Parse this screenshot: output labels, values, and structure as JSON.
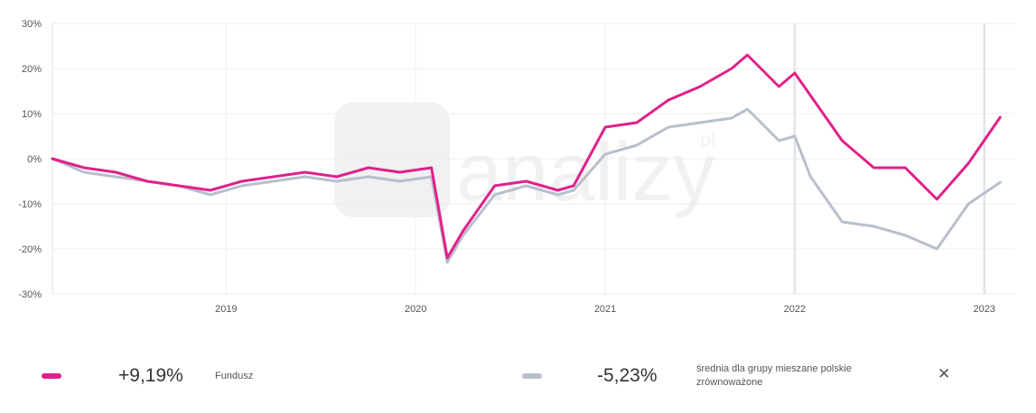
{
  "chart_data": {
    "type": "line",
    "title": "",
    "xlabel": "",
    "ylabel": "",
    "ylim": [
      -30,
      30
    ],
    "y_ticks": [
      "30%",
      "20%",
      "10%",
      "0%",
      "-10%",
      "-20%",
      "-30%"
    ],
    "x_ticks": [
      "2019",
      "2020",
      "2021",
      "2022",
      "2023"
    ],
    "grid": true,
    "watermark": "analizy.pl",
    "x_dates": [
      "2018-02",
      "2018-04",
      "2018-06",
      "2018-08",
      "2018-10",
      "2018-12",
      "2019-02",
      "2019-04",
      "2019-06",
      "2019-08",
      "2019-10",
      "2019-12",
      "2020-02",
      "2020-03",
      "2020-04",
      "2020-06",
      "2020-08",
      "2020-10",
      "2020-11",
      "2021-01",
      "2021-03",
      "2021-05",
      "2021-07",
      "2021-09",
      "2021-10",
      "2021-12",
      "2022-01",
      "2022-02",
      "2022-04",
      "2022-06",
      "2022-08",
      "2022-10",
      "2022-12",
      "2023-02"
    ],
    "series": [
      {
        "name": "Fundusz",
        "color": "#e0218a",
        "values": [
          0,
          -2,
          -3,
          -5,
          -6,
          -7,
          -5,
          -4,
          -3,
          -4,
          -2,
          -3,
          -2,
          -22,
          -16,
          -6,
          -5,
          -7,
          -6,
          7,
          8,
          13,
          16,
          20,
          23,
          16,
          19,
          14,
          4,
          -2,
          -2,
          -9,
          -1,
          9.19
        ]
      },
      {
        "name": "średnia dla grupy mieszane polskie zrównoważone",
        "color": "#b8bfcc",
        "values": [
          0,
          -3,
          -4,
          -5,
          -6,
          -8,
          -6,
          -5,
          -4,
          -5,
          -4,
          -5,
          -4,
          -23,
          -17,
          -8,
          -6,
          -8,
          -7,
          1,
          3,
          7,
          8,
          9,
          11,
          4,
          5,
          -4,
          -14,
          -15,
          -17,
          -20,
          -10,
          -5.23
        ]
      }
    ]
  },
  "legend": {
    "fund": {
      "return": "+9,19%",
      "label": "Fundusz",
      "color": "#e0218a"
    },
    "group": {
      "return": "-5,23%",
      "label": "średnia dla grupy mieszane polskie zrównoważone",
      "color": "#b8bfcc"
    },
    "close_icon": "close-icon"
  }
}
